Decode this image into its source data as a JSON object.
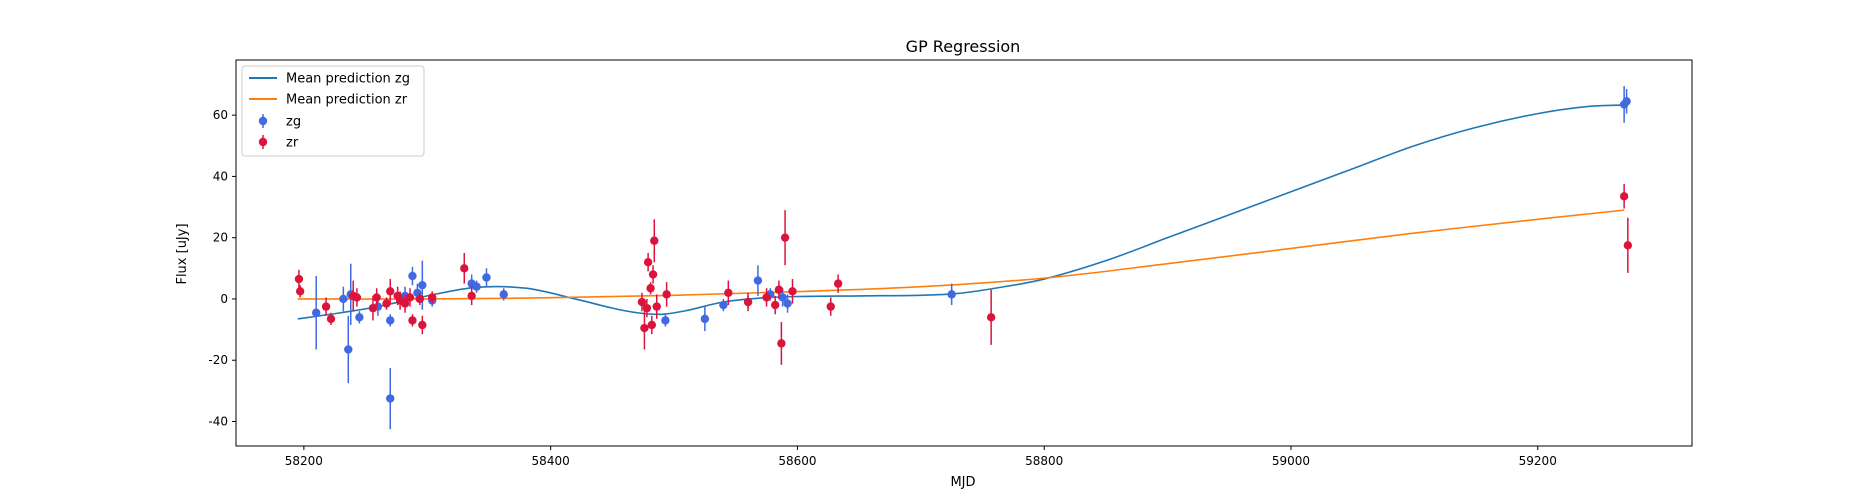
{
  "chart_data": {
    "type": "scatter",
    "title": "GP Regression",
    "xlabel": "MJD",
    "ylabel": "Flux [uJy]",
    "xlim": [
      58145,
      59325
    ],
    "ylim": [
      -48,
      78
    ],
    "xticks": [
      58200,
      58400,
      58600,
      58800,
      59000,
      59200
    ],
    "yticks": [
      -40,
      -20,
      0,
      20,
      40,
      60
    ],
    "grid": false,
    "legend_position": "top-left",
    "colors": {
      "zg_points": "#4169e1",
      "zr_points": "#dc143c",
      "zg_line": "#1f77b4",
      "zr_line": "#ff7f0e"
    },
    "legend": [
      {
        "label": "Mean prediction zg",
        "kind": "line",
        "color": "#1f77b4"
      },
      {
        "label": "Mean prediction zr",
        "kind": "line",
        "color": "#ff7f0e"
      },
      {
        "label": "zg",
        "kind": "marker",
        "color": "#4169e1"
      },
      {
        "label": "zr",
        "kind": "marker",
        "color": "#dc143c"
      }
    ],
    "lines": [
      {
        "name": "Mean prediction zg",
        "color": "#1f77b4",
        "x": [
          58195,
          58230,
          58260,
          58300,
          58340,
          58380,
          58420,
          58450,
          58470,
          58490,
          58510,
          58540,
          58570,
          58600,
          58650,
          58700,
          58730,
          58760,
          58800,
          58850,
          58900,
          58950,
          59000,
          59050,
          59100,
          59150,
          59200,
          59240,
          59270
        ],
        "y": [
          -6.5,
          -4.5,
          -2.5,
          1.0,
          3.8,
          3.5,
          0.0,
          -3.0,
          -4.5,
          -5.0,
          -3.8,
          -1.0,
          0.3,
          0.8,
          1.0,
          1.2,
          1.8,
          3.5,
          6.5,
          12.5,
          20.0,
          27.5,
          35.0,
          42.5,
          50.0,
          56.0,
          60.5,
          62.8,
          63.3
        ]
      },
      {
        "name": "Mean prediction zr",
        "color": "#ff7f0e",
        "x": [
          58195,
          58300,
          58400,
          58500,
          58600,
          58700,
          58800,
          58900,
          59000,
          59100,
          59200,
          59270
        ],
        "y": [
          0.0,
          0.0,
          0.4,
          1.2,
          2.4,
          4.0,
          6.8,
          11.5,
          16.5,
          21.5,
          26.0,
          29.0
        ]
      }
    ],
    "series": [
      {
        "name": "zg",
        "color": "#4169e1",
        "points": [
          [
            58210,
            -4.5,
            12
          ],
          [
            58232,
            0,
            4
          ],
          [
            58236,
            -16.5,
            11
          ],
          [
            58238,
            1.5,
            10
          ],
          [
            58245,
            -6,
            2
          ],
          [
            58260,
            -2.5,
            3
          ],
          [
            58270,
            -7,
            2
          ],
          [
            58270,
            -32.5,
            10
          ],
          [
            58282,
            1,
            3
          ],
          [
            58288,
            7.5,
            3
          ],
          [
            58292,
            2,
            3
          ],
          [
            58296,
            4.5,
            8
          ],
          [
            58304,
            -0.5,
            2
          ],
          [
            58336,
            5,
            3
          ],
          [
            58340,
            4,
            2
          ],
          [
            58348,
            7,
            3
          ],
          [
            58362,
            1.5,
            2
          ],
          [
            58493,
            -7,
            2
          ],
          [
            58525,
            -6.5,
            4
          ],
          [
            58540,
            -2,
            2
          ],
          [
            58560,
            -1,
            2
          ],
          [
            58568,
            6,
            5
          ],
          [
            58578,
            1.5,
            2
          ],
          [
            58588,
            0.5,
            3
          ],
          [
            58592,
            -1.5,
            3
          ],
          [
            58725,
            1.5,
            3.5
          ],
          [
            59270,
            63.5,
            6
          ],
          [
            59272,
            64.5,
            4
          ]
        ]
      },
      {
        "name": "zr",
        "color": "#dc143c",
        "points": [
          [
            58196,
            6.5,
            3
          ],
          [
            58197,
            2.5,
            2
          ],
          [
            58218,
            -2.5,
            3
          ],
          [
            58222,
            -6.5,
            2
          ],
          [
            58240,
            1,
            5
          ],
          [
            58243,
            0.5,
            3
          ],
          [
            58256,
            -3,
            4
          ],
          [
            58259,
            0.5,
            3
          ],
          [
            58267,
            -1.5,
            2
          ],
          [
            58270,
            2.5,
            4
          ],
          [
            58276,
            1,
            3
          ],
          [
            58278,
            -0.5,
            3
          ],
          [
            58282,
            -1.5,
            3
          ],
          [
            58286,
            0.5,
            3
          ],
          [
            58288,
            -7,
            2
          ],
          [
            58294,
            0,
            2
          ],
          [
            58296,
            -8.5,
            3
          ],
          [
            58304,
            0.5,
            2
          ],
          [
            58330,
            10,
            5
          ],
          [
            58336,
            1,
            3
          ],
          [
            58474,
            -1,
            3
          ],
          [
            58476,
            -9.5,
            7
          ],
          [
            58478,
            -3,
            3
          ],
          [
            58479,
            12,
            3
          ],
          [
            58481,
            3.5,
            2
          ],
          [
            58482,
            -8.5,
            3
          ],
          [
            58483,
            8,
            3
          ],
          [
            58484,
            19,
            7
          ],
          [
            58486,
            -2.5,
            4
          ],
          [
            58494,
            1.5,
            4
          ],
          [
            58544,
            2,
            4
          ],
          [
            58560,
            -1,
            3
          ],
          [
            58575,
            0.5,
            3
          ],
          [
            58582,
            -2,
            3
          ],
          [
            58585,
            3,
            3
          ],
          [
            58587,
            -14.5,
            7
          ],
          [
            58590,
            20,
            9
          ],
          [
            58596,
            2.5,
            4
          ],
          [
            58627,
            -2.5,
            3
          ],
          [
            58633,
            5,
            3
          ],
          [
            58757,
            -6,
            9
          ],
          [
            59270,
            33.5,
            4
          ],
          [
            59273,
            17.5,
            9
          ]
        ]
      }
    ]
  }
}
